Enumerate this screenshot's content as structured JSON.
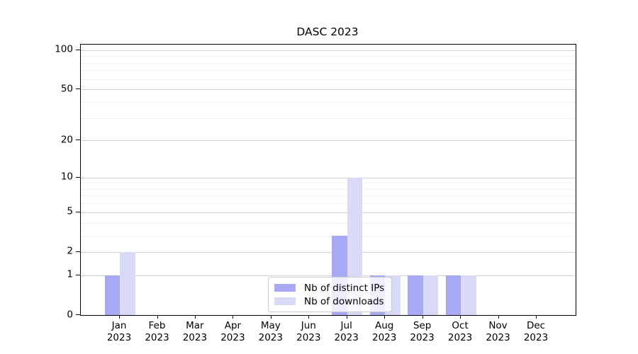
{
  "chart_data": {
    "type": "bar",
    "title": "DASC 2023",
    "categories": [
      "Jan 2023",
      "Feb 2023",
      "Mar 2023",
      "Apr 2023",
      "May 2023",
      "Jun 2023",
      "Jul 2023",
      "Aug 2023",
      "Sep 2023",
      "Oct 2023",
      "Nov 2023",
      "Dec 2023"
    ],
    "series": [
      {
        "name": "Nb of distinct IPs",
        "color": "#a8a9f4",
        "values": [
          1,
          0,
          0,
          0,
          0,
          0,
          3,
          1,
          1,
          1,
          0,
          0
        ]
      },
      {
        "name": "Nb of downloads",
        "color": "#d9daf8",
        "values": [
          2,
          0,
          0,
          0,
          0,
          0,
          10,
          1,
          1,
          1,
          0,
          0
        ]
      }
    ],
    "yticks": [
      0,
      1,
      2,
      5,
      10,
      20,
      50,
      100
    ],
    "ylim": [
      0,
      110
    ],
    "scale": "log1p",
    "grid": "horizontal",
    "legend": {
      "position": "lower center",
      "labels": [
        "Nb of distinct IPs",
        "Nb of downloads"
      ]
    }
  }
}
